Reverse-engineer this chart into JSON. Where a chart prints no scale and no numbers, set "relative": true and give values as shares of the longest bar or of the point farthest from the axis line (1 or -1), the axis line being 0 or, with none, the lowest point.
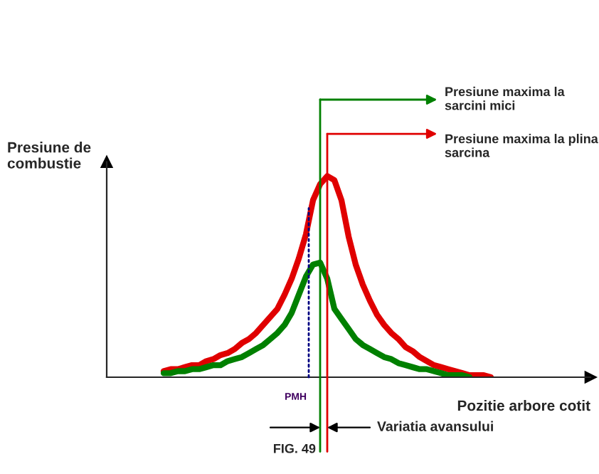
{
  "chart_data": {
    "type": "line",
    "xlabel": "Pozitie arbore cotit",
    "ylabel": "Presiune de\ncombustie",
    "relative": true,
    "categories": [
      null,
      null,
      null,
      null,
      null,
      null,
      null,
      null,
      null,
      null,
      null,
      null,
      null,
      null,
      null,
      null,
      null,
      null,
      null,
      null,
      null,
      null,
      null,
      null,
      null,
      null,
      null,
      null,
      null,
      null,
      null,
      null,
      null,
      null,
      null,
      null,
      null,
      null,
      null,
      null,
      null,
      null,
      null,
      null,
      null,
      null,
      null,
      null,
      null,
      null,
      null,
      null,
      null,
      null,
      null,
      null,
      null,
      null,
      null,
      null,
      null,
      null,
      null,
      null,
      null,
      null,
      null,
      null,
      null
    ],
    "series": [
      {
        "color": "#e00000",
        "values": [
          null,
          null,
          null,
          null,
          null,
          null,
          null,
          null,
          0.03,
          0.04,
          0.04,
          0.05,
          0.06,
          0.06,
          0.08,
          0.09,
          0.11,
          0.12,
          0.14,
          0.17,
          0.19,
          0.22,
          0.26,
          0.3,
          0.34,
          0.41,
          0.49,
          0.59,
          0.71,
          0.88,
          0.96,
          1.0,
          0.98,
          0.88,
          0.7,
          0.56,
          0.46,
          0.38,
          0.31,
          0.26,
          0.22,
          0.19,
          0.15,
          0.13,
          0.1,
          0.08,
          0.06,
          0.05,
          0.04,
          0.03,
          0.02,
          0.01,
          0.01,
          0.01,
          0,
          null,
          null,
          null,
          null,
          null,
          null,
          null,
          null,
          null,
          null,
          null,
          null,
          null,
          null
        ]
      },
      {
        "color": "#008000",
        "values": [
          null,
          null,
          null,
          null,
          null,
          null,
          null,
          null,
          0.02,
          0.02,
          0.03,
          0.03,
          0.04,
          0.04,
          0.05,
          0.06,
          0.06,
          0.08,
          0.09,
          0.1,
          0.12,
          0.14,
          0.16,
          0.19,
          0.22,
          0.26,
          0.32,
          0.41,
          0.5,
          0.56,
          0.57,
          0.49,
          0.34,
          0.29,
          0.24,
          0.19,
          0.16,
          0.14,
          0.12,
          0.1,
          0.09,
          0.07,
          0.06,
          0.05,
          0.04,
          0.04,
          0.03,
          0.02,
          0.01,
          0.01,
          0.01,
          0,
          null,
          null,
          null,
          null,
          null,
          null,
          null,
          null,
          null,
          null,
          null,
          null,
          null,
          null,
          null,
          null,
          null
        ]
      }
    ],
    "annotations": [
      "PMH",
      "Presiune maxima la sarcini mici",
      "Presiune maxima la plina sarcina",
      "Variatia avansului",
      "FIG. 49"
    ]
  }
}
